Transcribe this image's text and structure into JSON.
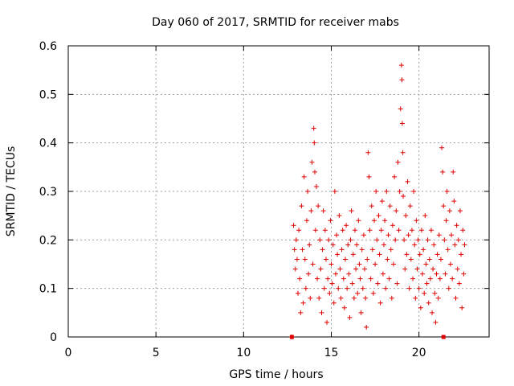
{
  "chart_data": {
    "type": "scatter",
    "title": "Day 060 of 2017, SRMTID for receiver mabs",
    "xlabel": "GPS time / hours",
    "ylabel": "SRMTID / TECUs",
    "xlim": [
      0,
      24.0
    ],
    "ylim": [
      0,
      0.6
    ],
    "x_ticks": [
      "0",
      "5",
      "10",
      "15",
      "20"
    ],
    "y_ticks": [
      "0",
      "0.1",
      "0.2",
      "0.3",
      "0.4",
      "0.5",
      "0.6"
    ],
    "grid": true,
    "marker": "plus",
    "color": "#e00000",
    "series": [
      {
        "values": [
          [
            12.75,
            0.0
          ],
          [
            12.85,
            0.23
          ],
          [
            12.9,
            0.18
          ],
          [
            12.95,
            0.14
          ],
          [
            13.0,
            0.2
          ],
          [
            13.05,
            0.16
          ],
          [
            13.1,
            0.09
          ],
          [
            13.15,
            0.22
          ],
          [
            13.2,
            0.12
          ],
          [
            13.25,
            0.05
          ],
          [
            13.3,
            0.27
          ],
          [
            13.35,
            0.18
          ],
          [
            13.4,
            0.07
          ],
          [
            13.45,
            0.33
          ],
          [
            13.5,
            0.16
          ],
          [
            13.55,
            0.1
          ],
          [
            13.6,
            0.24
          ],
          [
            13.65,
            0.3
          ],
          [
            13.7,
            0.13
          ],
          [
            13.75,
            0.19
          ],
          [
            13.8,
            0.08
          ],
          [
            13.85,
            0.26
          ],
          [
            13.9,
            0.36
          ],
          [
            13.95,
            0.15
          ],
          [
            14.0,
            0.43
          ],
          [
            14.03,
            0.4
          ],
          [
            14.06,
            0.34
          ],
          [
            14.1,
            0.22
          ],
          [
            14.15,
            0.31
          ],
          [
            14.2,
            0.12
          ],
          [
            14.25,
            0.27
          ],
          [
            14.3,
            0.08
          ],
          [
            14.35,
            0.2
          ],
          [
            14.4,
            0.14
          ],
          [
            14.45,
            0.05
          ],
          [
            14.5,
            0.18
          ],
          [
            14.55,
            0.26
          ],
          [
            14.6,
            0.1
          ],
          [
            14.65,
            0.22
          ],
          [
            14.7,
            0.16
          ],
          [
            14.75,
            0.03
          ],
          [
            14.8,
            0.12
          ],
          [
            14.85,
            0.2
          ],
          [
            14.9,
            0.09
          ],
          [
            14.95,
            0.24
          ],
          [
            15.0,
            0.15
          ],
          [
            15.05,
            0.11
          ],
          [
            15.1,
            0.19
          ],
          [
            15.15,
            0.07
          ],
          [
            15.2,
            0.3
          ],
          [
            15.25,
            0.13
          ],
          [
            15.3,
            0.21
          ],
          [
            15.35,
            0.17
          ],
          [
            15.4,
            0.1
          ],
          [
            15.45,
            0.25
          ],
          [
            15.5,
            0.14
          ],
          [
            15.55,
            0.08
          ],
          [
            15.6,
            0.18
          ],
          [
            15.65,
            0.22
          ],
          [
            15.7,
            0.12
          ],
          [
            15.75,
            0.06
          ],
          [
            15.8,
            0.16
          ],
          [
            15.85,
            0.23
          ],
          [
            15.9,
            0.1
          ],
          [
            15.95,
            0.19
          ],
          [
            16.0,
            0.13
          ],
          [
            16.05,
            0.04
          ],
          [
            16.1,
            0.2
          ],
          [
            16.15,
            0.26
          ],
          [
            16.2,
            0.11
          ],
          [
            16.25,
            0.17
          ],
          [
            16.3,
            0.08
          ],
          [
            16.35,
            0.22
          ],
          [
            16.4,
            0.14
          ],
          [
            16.45,
            0.19
          ],
          [
            16.5,
            0.09
          ],
          [
            16.55,
            0.24
          ],
          [
            16.6,
            0.15
          ],
          [
            16.65,
            0.12
          ],
          [
            16.7,
            0.05
          ],
          [
            16.75,
            0.18
          ],
          [
            16.8,
            0.1
          ],
          [
            16.85,
            0.21
          ],
          [
            16.9,
            0.14
          ],
          [
            16.95,
            0.08
          ],
          [
            17.0,
            0.02
          ],
          [
            17.05,
            0.16
          ],
          [
            17.1,
            0.38
          ],
          [
            17.15,
            0.33
          ],
          [
            17.2,
            0.22
          ],
          [
            17.25,
            0.12
          ],
          [
            17.3,
            0.27
          ],
          [
            17.35,
            0.18
          ],
          [
            17.4,
            0.09
          ],
          [
            17.45,
            0.24
          ],
          [
            17.5,
            0.15
          ],
          [
            17.55,
            0.3
          ],
          [
            17.6,
            0.2
          ],
          [
            17.65,
            0.11
          ],
          [
            17.7,
            0.25
          ],
          [
            17.75,
            0.17
          ],
          [
            17.8,
            0.07
          ],
          [
            17.85,
            0.22
          ],
          [
            17.9,
            0.28
          ],
          [
            17.95,
            0.13
          ],
          [
            18.0,
            0.19
          ],
          [
            18.05,
            0.24
          ],
          [
            18.1,
            0.1
          ],
          [
            18.15,
            0.3
          ],
          [
            18.2,
            0.16
          ],
          [
            18.25,
            0.21
          ],
          [
            18.3,
            0.12
          ],
          [
            18.35,
            0.27
          ],
          [
            18.4,
            0.18
          ],
          [
            18.45,
            0.08
          ],
          [
            18.5,
            0.23
          ],
          [
            18.55,
            0.15
          ],
          [
            18.6,
            0.33
          ],
          [
            18.65,
            0.2
          ],
          [
            18.7,
            0.26
          ],
          [
            18.75,
            0.11
          ],
          [
            18.8,
            0.36
          ],
          [
            18.85,
            0.22
          ],
          [
            18.9,
            0.3
          ],
          [
            18.95,
            0.47
          ],
          [
            19.0,
            0.56
          ],
          [
            19.03,
            0.53
          ],
          [
            19.05,
            0.44
          ],
          [
            19.08,
            0.38
          ],
          [
            19.1,
            0.29
          ],
          [
            19.15,
            0.2
          ],
          [
            19.2,
            0.14
          ],
          [
            19.25,
            0.25
          ],
          [
            19.3,
            0.17
          ],
          [
            19.35,
            0.32
          ],
          [
            19.4,
            0.21
          ],
          [
            19.45,
            0.1
          ],
          [
            19.5,
            0.27
          ],
          [
            19.55,
            0.16
          ],
          [
            19.6,
            0.22
          ],
          [
            19.65,
            0.12
          ],
          [
            19.7,
            0.3
          ],
          [
            19.75,
            0.19
          ],
          [
            19.8,
            0.08
          ],
          [
            19.85,
            0.24
          ],
          [
            19.9,
            0.14
          ],
          [
            19.95,
            0.2
          ],
          [
            20.0,
            0.1
          ],
          [
            20.05,
            0.17
          ],
          [
            20.1,
            0.06
          ],
          [
            20.15,
            0.22
          ],
          [
            20.2,
            0.13
          ],
          [
            20.25,
            0.18
          ],
          [
            20.3,
            0.09
          ],
          [
            20.35,
            0.25
          ],
          [
            20.4,
            0.15
          ],
          [
            20.45,
            0.11
          ],
          [
            20.5,
            0.2
          ],
          [
            20.55,
            0.07
          ],
          [
            20.6,
            0.16
          ],
          [
            20.65,
            0.12
          ],
          [
            20.7,
            0.22
          ],
          [
            20.75,
            0.05
          ],
          [
            20.8,
            0.14
          ],
          [
            20.85,
            0.19
          ],
          [
            20.9,
            0.09
          ],
          [
            20.95,
            0.03
          ],
          [
            21.0,
            0.13
          ],
          [
            21.05,
            0.17
          ],
          [
            21.1,
            0.08
          ],
          [
            21.15,
            0.21
          ],
          [
            21.2,
            0.12
          ],
          [
            21.25,
            0.16
          ],
          [
            21.3,
            0.39
          ],
          [
            21.35,
            0.34
          ],
          [
            21.4,
            0.27
          ],
          [
            21.45,
            0.2
          ],
          [
            21.5,
            0.13
          ],
          [
            21.55,
            0.24
          ],
          [
            21.6,
            0.3
          ],
          [
            21.65,
            0.18
          ],
          [
            21.7,
            0.1
          ],
          [
            21.75,
            0.26
          ],
          [
            21.8,
            0.15
          ],
          [
            21.85,
            0.21
          ],
          [
            21.9,
            0.12
          ],
          [
            21.95,
            0.34
          ],
          [
            22.0,
            0.28
          ],
          [
            22.05,
            0.19
          ],
          [
            22.1,
            0.08
          ],
          [
            22.15,
            0.23
          ],
          [
            22.2,
            0.14
          ],
          [
            22.25,
            0.2
          ],
          [
            22.3,
            0.11
          ],
          [
            22.35,
            0.26
          ],
          [
            22.4,
            0.17
          ],
          [
            22.45,
            0.06
          ],
          [
            22.5,
            0.22
          ],
          [
            22.55,
            0.13
          ],
          [
            22.6,
            0.19
          ]
        ]
      }
    ],
    "markers_zero": [
      12.75,
      21.4
    ]
  }
}
